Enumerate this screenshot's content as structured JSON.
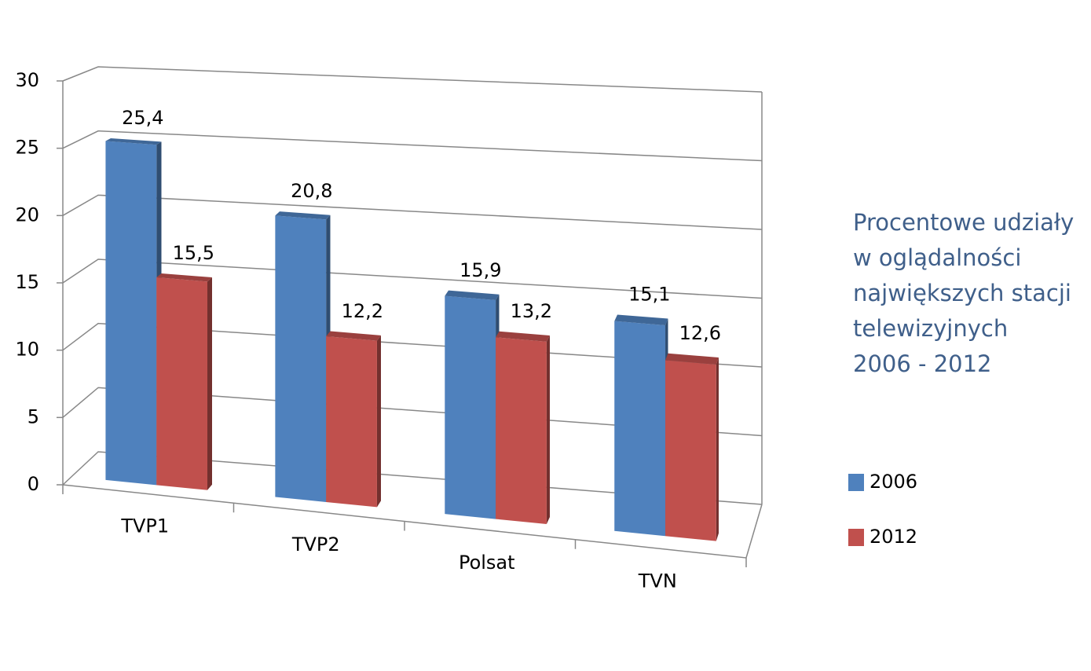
{
  "chart_data": {
    "type": "bar3d",
    "title": [
      "Procentowe udziały",
      "w oglądalności",
      "największych stacji",
      "telewizyjnych",
      "2006 - 2012"
    ],
    "categories": [
      "TVP1",
      "TVP2",
      "Polsat",
      "TVN"
    ],
    "series": [
      {
        "name": "2006",
        "color": "#4f81bd",
        "values": [
          25.4,
          20.8,
          15.9,
          15.1
        ],
        "value_labels": [
          "25,4",
          "20,8",
          "15,9",
          "15,1"
        ]
      },
      {
        "name": "2012",
        "color": "#c0504d",
        "values": [
          15.5,
          12.2,
          13.2,
          12.6
        ],
        "value_labels": [
          "15,5",
          "12,2",
          "13,2",
          "12,6"
        ]
      }
    ],
    "ylim": [
      0,
      30
    ],
    "yticks": [
      0,
      5,
      10,
      15,
      20,
      25,
      30
    ],
    "grid": true,
    "legend": "right"
  }
}
